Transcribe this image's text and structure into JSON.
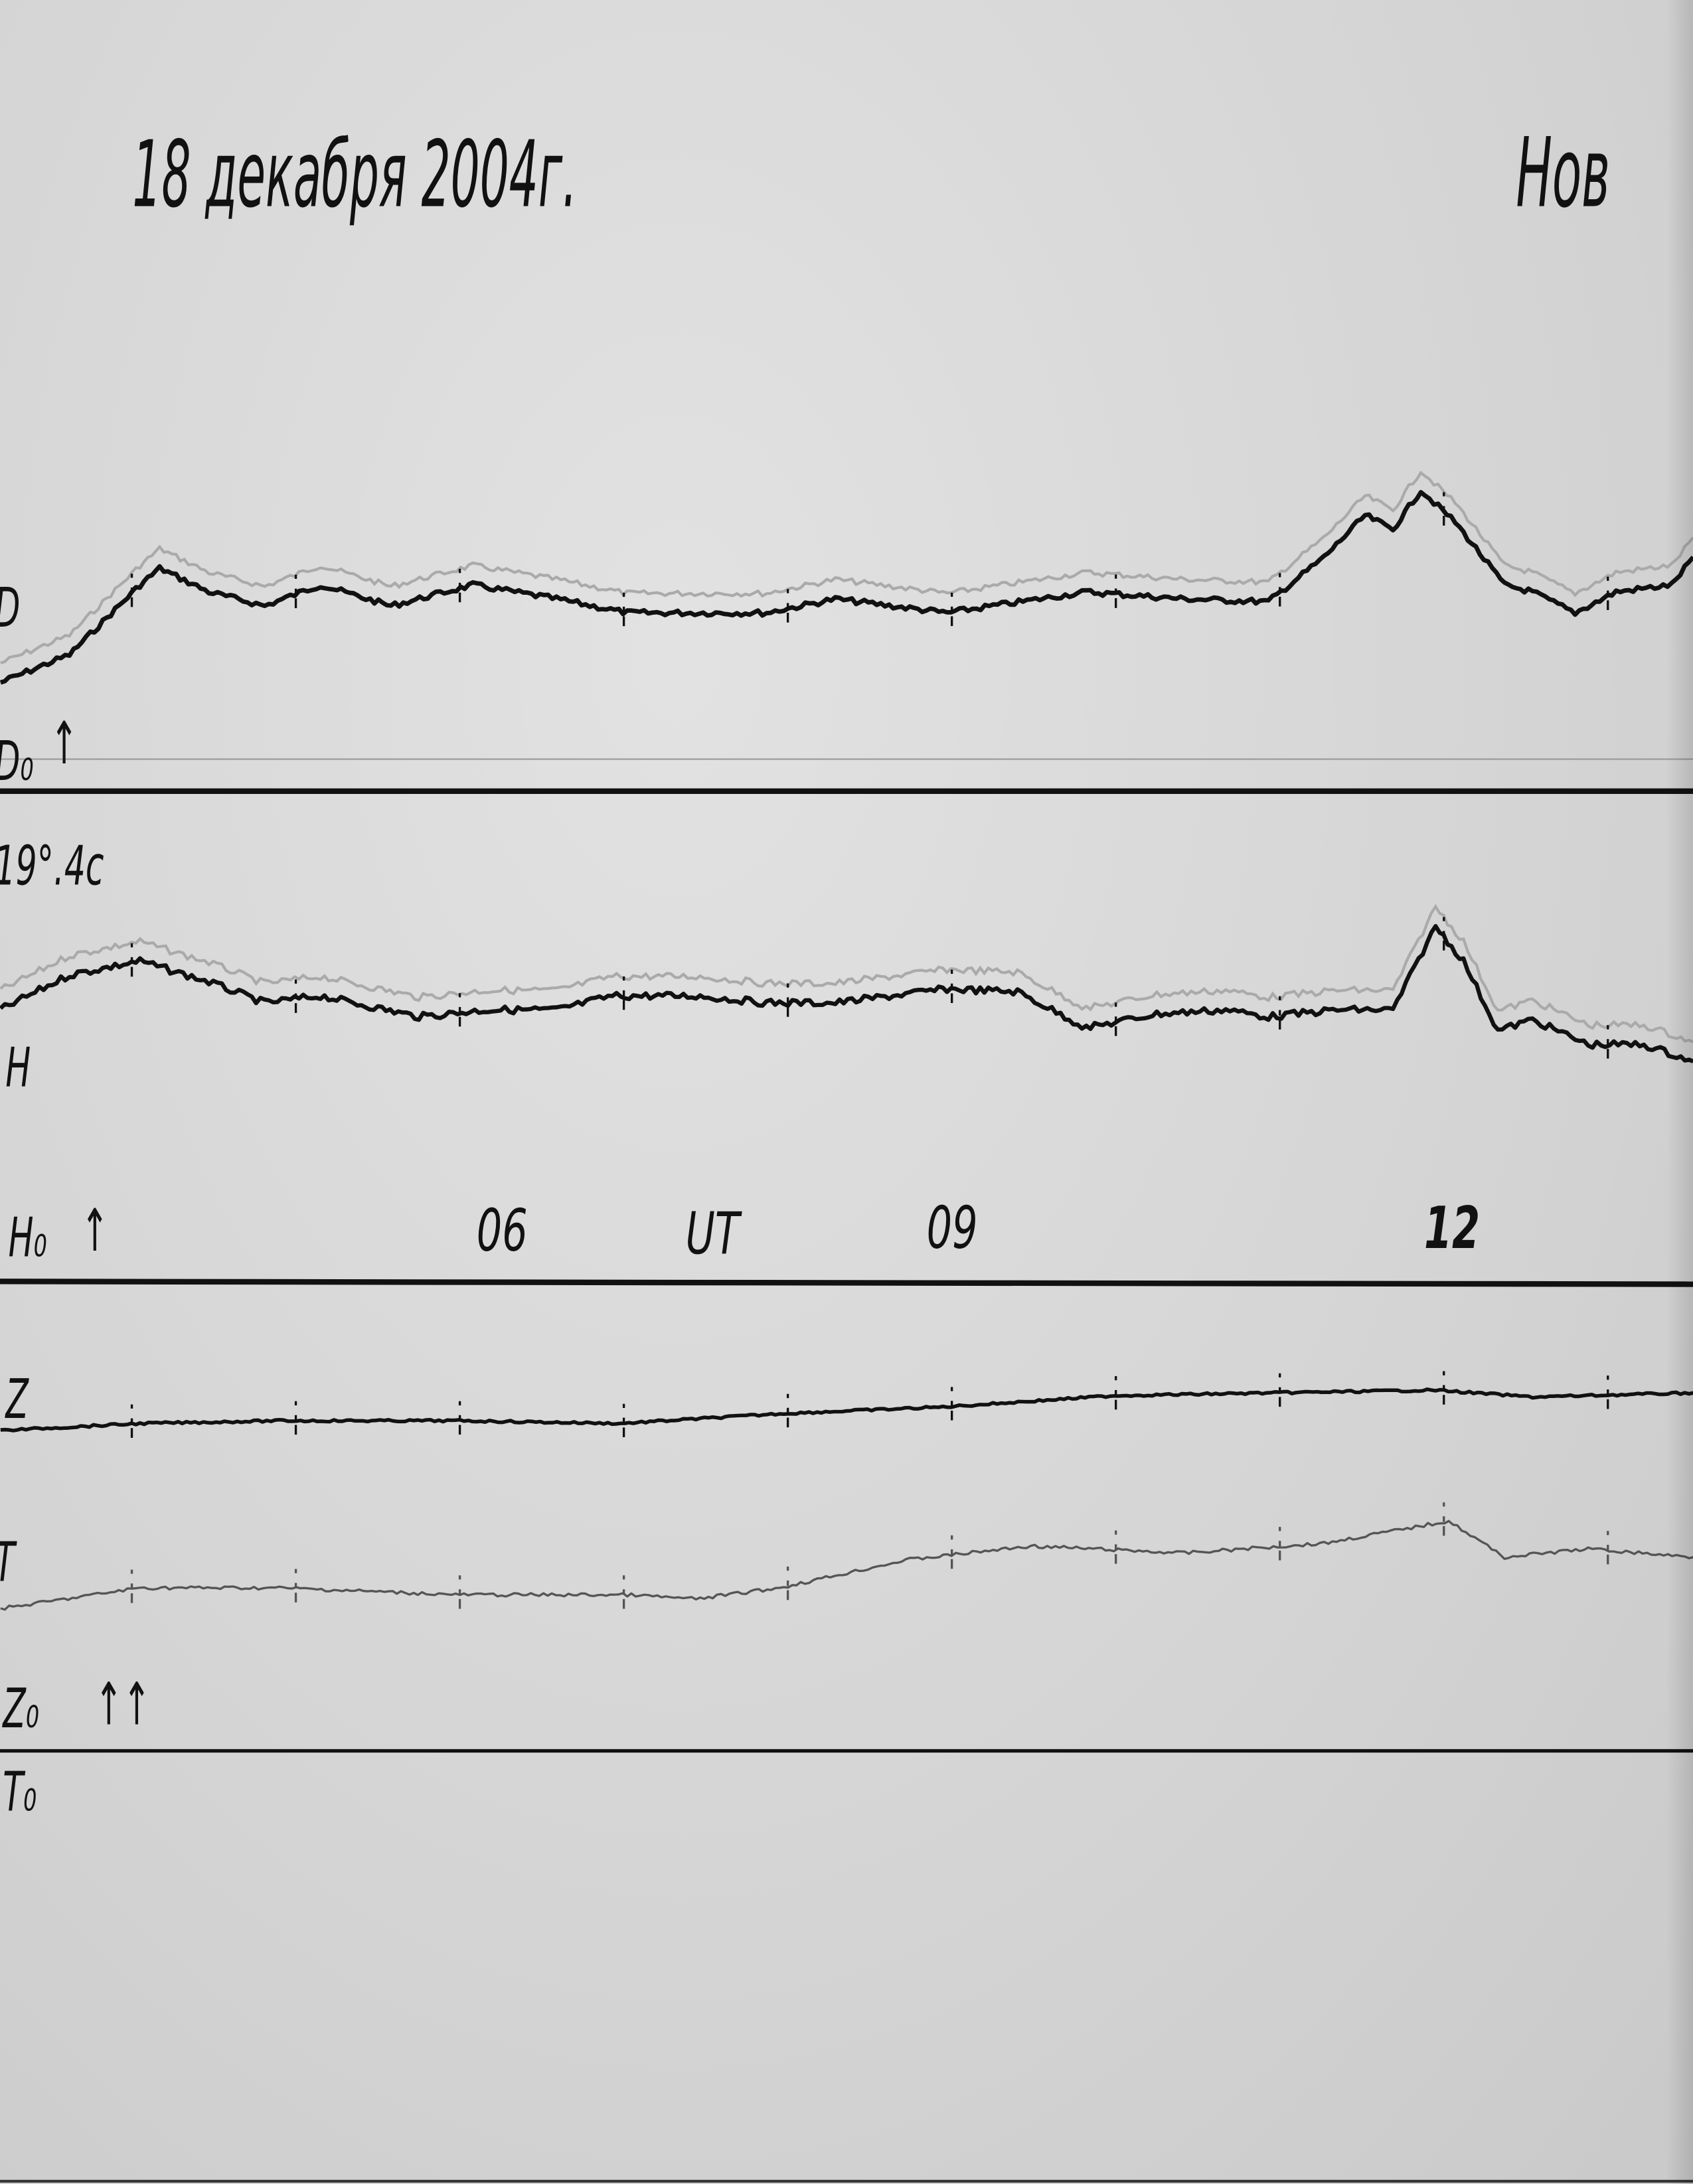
{
  "header": {
    "date": "18 декабря 2004г.",
    "station": "Нов"
  },
  "chart_data": {
    "type": "line",
    "title": "18 декабря 2004г.",
    "xlabel": "UT",
    "x_ticks": [
      "06",
      "09",
      "12"
    ],
    "x_tick_values": [
      6,
      9,
      12
    ],
    "xlim": [
      3.2,
      13.5
    ],
    "hour_marks": [
      4,
      5,
      6,
      7,
      8,
      9,
      10,
      11,
      12,
      13
    ],
    "grid": false,
    "series": [
      {
        "name": "D",
        "baseline_label": "D₀",
        "baseline_note": "19°.4c",
        "color": "#111111",
        "x": [
          3.2,
          3.62,
          4.05,
          4.17,
          4.47,
          4.81,
          5.15,
          5.58,
          6.08,
          6.59,
          7.02,
          7.87,
          8.29,
          8.97,
          9.82,
          10.42,
          10.93,
          11.27,
          11.52,
          11.69,
          11.86,
          12.07,
          12.37,
          12.54,
          12.8,
          13.05,
          13.39,
          13.52
        ],
        "y": [
          78,
          98,
          148,
          160,
          143,
          133,
          148,
          133,
          148,
          138,
          128,
          128,
          138,
          128,
          143,
          138,
          136,
          168,
          198,
          188,
          216,
          193,
          148,
          143,
          128,
          143,
          148,
          168
        ]
      },
      {
        "name": "H",
        "baseline_label": "H₀",
        "color": "#111111",
        "x": [
          3.2,
          3.62,
          4.05,
          4.47,
          4.81,
          5.15,
          5.75,
          6.17,
          6.59,
          6.93,
          7.44,
          7.87,
          8.29,
          8.97,
          9.4,
          9.82,
          10.25,
          10.67,
          10.93,
          11.35,
          11.69,
          11.95,
          12.12,
          12.33,
          12.54,
          12.88,
          13.22,
          13.52
        ],
        "y": [
          195,
          220,
          230,
          215,
          200,
          205,
          190,
          195,
          195,
          205,
          205,
          200,
          200,
          210,
          208,
          182,
          192,
          195,
          190,
          195,
          195,
          255,
          230,
          180,
          188,
          170,
          170,
          158
        ]
      },
      {
        "name": "Z",
        "baseline_label": "Z₀",
        "color": "#111111",
        "x": [
          3.2,
          4.05,
          4.9,
          6,
          6.98,
          7.95,
          8.97,
          9.99,
          10.97,
          11.95,
          12.54,
          13.52
        ],
        "y": [
          230,
          235,
          237,
          237,
          235,
          242,
          247,
          255,
          257,
          259,
          254,
          257
        ]
      },
      {
        "name": "T",
        "baseline_label": "T₀",
        "color": "#555555",
        "x": [
          3.2,
          4.05,
          4.9,
          6,
          7.02,
          7.44,
          7.95,
          8.72,
          9.48,
          10.42,
          11.27,
          12.03,
          12.37,
          12.88,
          13.52
        ],
        "y": [
          102,
          117,
          117,
          112,
          112,
          109,
          117,
          137,
          147,
          142,
          149,
          165,
          139,
          145,
          139
        ]
      }
    ],
    "arrows": {
      "D0": "↑",
      "H0": "↑",
      "Z0": "↑↑"
    }
  }
}
